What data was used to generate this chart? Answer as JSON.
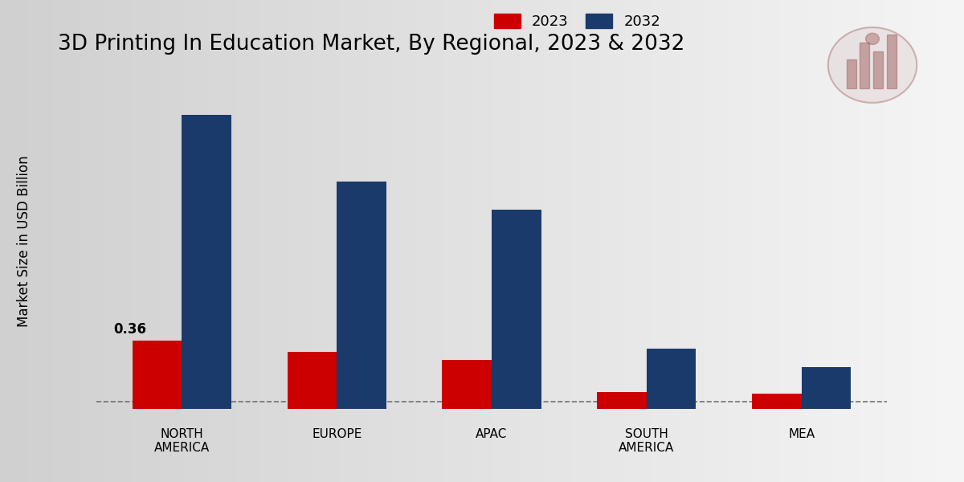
{
  "title": "3D Printing In Education Market, By Regional, 2023 & 2032",
  "ylabel": "Market Size in USD Billion",
  "categories": [
    "NORTH\nAMERICA",
    "EUROPE",
    "APAC",
    "SOUTH\nAMERICA",
    "MEA"
  ],
  "values_2023": [
    0.36,
    0.3,
    0.26,
    0.09,
    0.08
  ],
  "values_2032": [
    1.55,
    1.2,
    1.05,
    0.32,
    0.22
  ],
  "color_2023": "#cc0000",
  "color_2032": "#1a3a6b",
  "background_left": "#d0d0d0",
  "background_right": "#f5f5f5",
  "annotation_value": "0.36",
  "bar_width": 0.32,
  "title_fontsize": 19,
  "label_fontsize": 12,
  "legend_fontsize": 13,
  "tick_fontsize": 11,
  "ylim_max": 1.75
}
